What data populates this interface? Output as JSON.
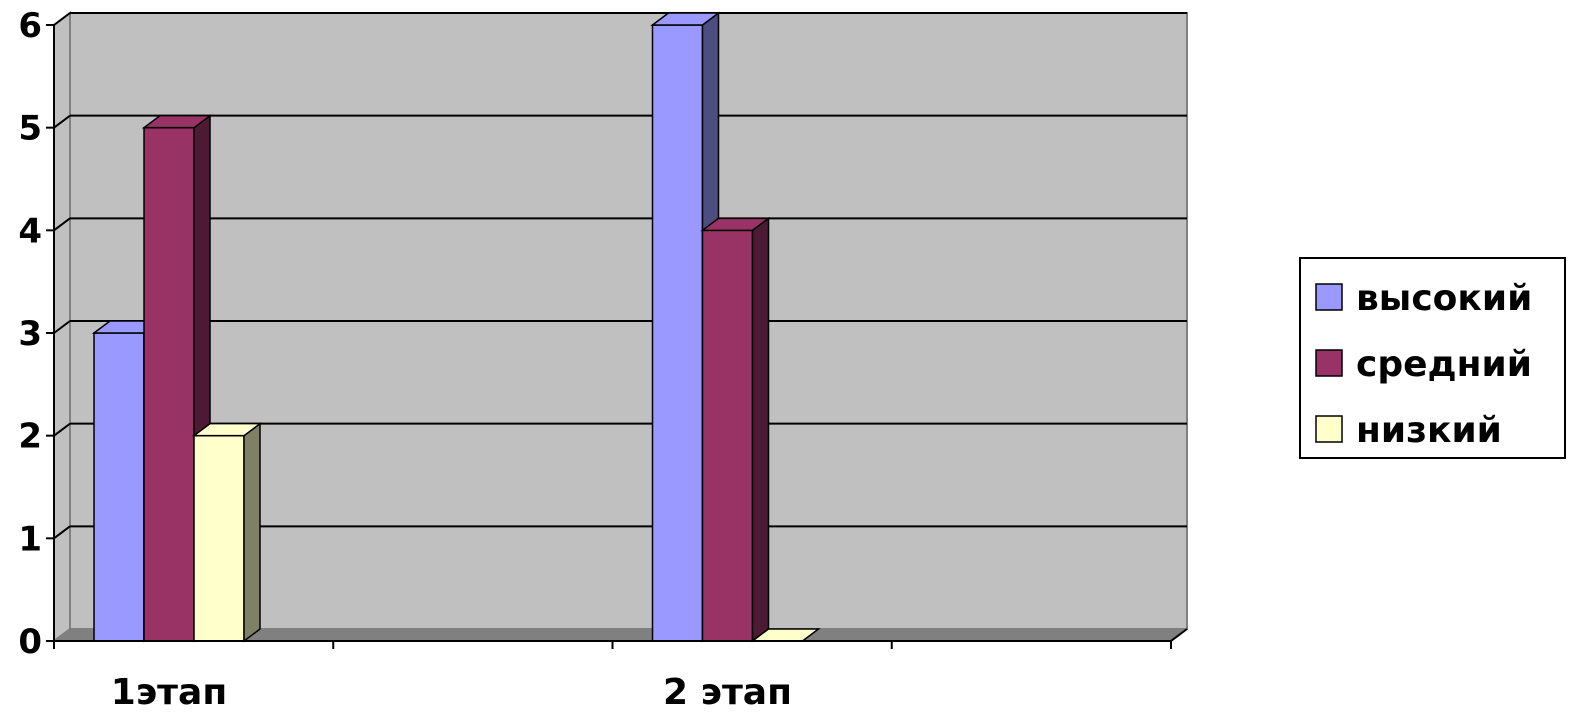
{
  "chart_data": {
    "type": "bar",
    "categories": [
      "1этап",
      "2 этап"
    ],
    "series": [
      {
        "name": "высокий",
        "values": [
          3,
          6
        ],
        "color": "#9999FF",
        "side_color": "#4D4D80"
      },
      {
        "name": "средний",
        "values": [
          5,
          4
        ],
        "color": "#993366",
        "side_color": "#4D1A33"
      },
      {
        "name": "низкий",
        "values": [
          2,
          0
        ],
        "color": "#FFFFCC",
        "side_color": "#808066"
      }
    ],
    "ylim": [
      0,
      6
    ],
    "yticks": [
      "0",
      "1",
      "2",
      "3",
      "4",
      "5",
      "6"
    ],
    "grid": true,
    "three_d": true,
    "legend_position": "right",
    "plot_background": "#C0C0C0",
    "floor_color": "#808080"
  }
}
